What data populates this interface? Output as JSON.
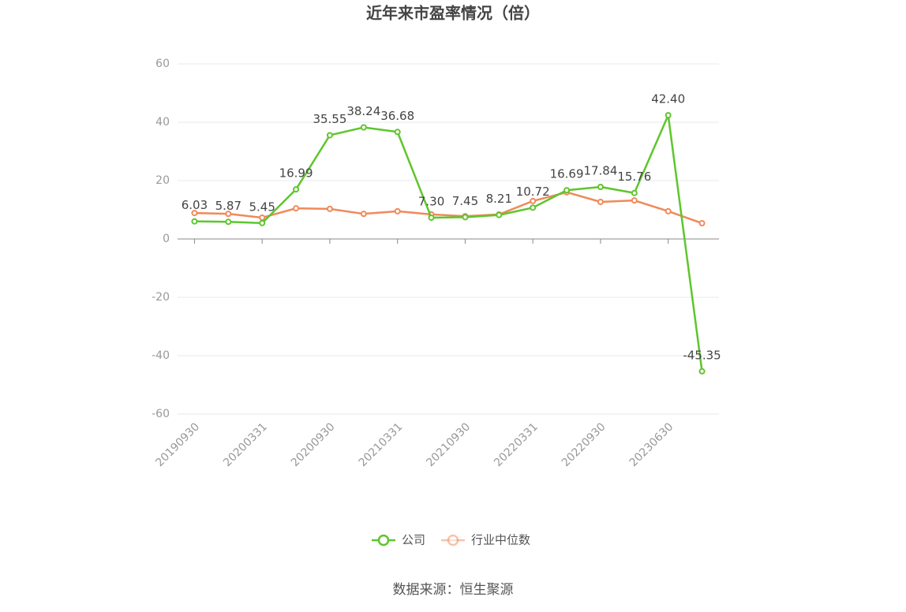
{
  "chart_data": {
    "type": "line",
    "title": "近年来市盈率情况（倍）",
    "categories": [
      "20190930",
      null,
      "20200331",
      null,
      "20200930",
      null,
      "20210331",
      null,
      "20210930",
      null,
      "20220331",
      null,
      "20220930",
      null,
      "20230630",
      null
    ],
    "series": [
      {
        "name": "公司",
        "color": "#5ec62c",
        "values": [
          6.03,
          5.87,
          5.45,
          16.99,
          35.55,
          38.24,
          36.68,
          7.3,
          7.45,
          8.21,
          10.72,
          16.69,
          17.84,
          15.76,
          42.4,
          -45.35
        ],
        "value_labels": [
          "6.03",
          "5.87",
          "5.45",
          "16.99",
          "35.55",
          "38.24",
          "36.68",
          "7.30",
          "7.45",
          "8.21",
          "10.72",
          "16.69",
          "17.84",
          "15.76",
          "42.40",
          "-45.35"
        ]
      },
      {
        "name": "行业中位数",
        "color": "#f0895a",
        "values": [
          8.9,
          8.6,
          7.3,
          10.5,
          10.3,
          8.6,
          9.5,
          8.4,
          7.8,
          8.4,
          13.0,
          16.0,
          12.7,
          13.2,
          9.5,
          5.4
        ]
      }
    ],
    "ylim": [
      -60,
      60
    ],
    "yticks": [
      -60,
      -40,
      -20,
      0,
      20,
      40,
      60
    ],
    "grid": true,
    "legend": "bottom",
    "source": "数据来源：恒生聚源"
  }
}
